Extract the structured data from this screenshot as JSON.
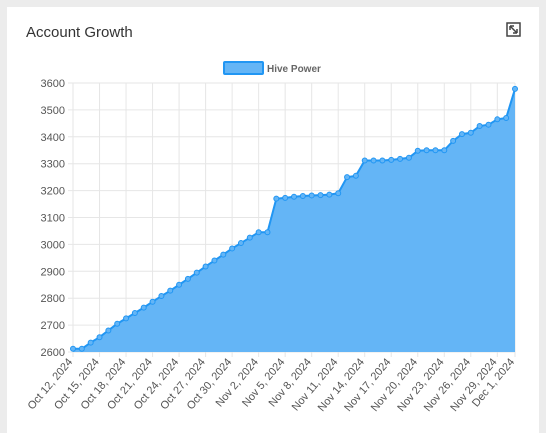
{
  "card": {
    "title": "Account Growth",
    "expand_icon": "expand-icon"
  },
  "colors": {
    "fill": "#64b5f6",
    "line": "#2196f3",
    "grid": "#e6e6e6"
  },
  "chart_data": {
    "type": "area",
    "title": "",
    "xlabel": "",
    "ylabel": "",
    "ylim": [
      2600,
      3600
    ],
    "yticks": [
      2600,
      2700,
      2800,
      2900,
      3000,
      3100,
      3200,
      3300,
      3400,
      3500,
      3600
    ],
    "grid": true,
    "legend_position": "top-center",
    "x": [
      "Oct 12, 2024",
      "Oct 13, 2024",
      "Oct 14, 2024",
      "Oct 15, 2024",
      "Oct 16, 2024",
      "Oct 17, 2024",
      "Oct 18, 2024",
      "Oct 19, 2024",
      "Oct 20, 2024",
      "Oct 21, 2024",
      "Oct 22, 2024",
      "Oct 23, 2024",
      "Oct 24, 2024",
      "Oct 25, 2024",
      "Oct 26, 2024",
      "Oct 27, 2024",
      "Oct 28, 2024",
      "Oct 29, 2024",
      "Oct 30, 2024",
      "Oct 31, 2024",
      "Nov 1, 2024",
      "Nov 2, 2024",
      "Nov 3, 2024",
      "Nov 4, 2024",
      "Nov 5, 2024",
      "Nov 6, 2024",
      "Nov 7, 2024",
      "Nov 8, 2024",
      "Nov 9, 2024",
      "Nov 10, 2024",
      "Nov 11, 2024",
      "Nov 12, 2024",
      "Nov 13, 2024",
      "Nov 14, 2024",
      "Nov 15, 2024",
      "Nov 16, 2024",
      "Nov 17, 2024",
      "Nov 18, 2024",
      "Nov 19, 2024",
      "Nov 20, 2024",
      "Nov 21, 2024",
      "Nov 22, 2024",
      "Nov 23, 2024",
      "Nov 24, 2024",
      "Nov 25, 2024",
      "Nov 26, 2024",
      "Nov 27, 2024",
      "Nov 28, 2024",
      "Nov 29, 2024",
      "Nov 30, 2024",
      "Dec 1, 2024"
    ],
    "x_tick_labels": [
      "Oct 12, 2024",
      "Oct 15, 2024",
      "Oct 18, 2024",
      "Oct 21, 2024",
      "Oct 24, 2024",
      "Oct 27, 2024",
      "Oct 30, 2024",
      "Nov 2, 2024",
      "Nov 5, 2024",
      "Nov 8, 2024",
      "Nov 11, 2024",
      "Nov 14, 2024",
      "Nov 17, 2024",
      "Nov 20, 2024",
      "Nov 23, 2024",
      "Nov 26, 2024",
      "Nov 29, 2024",
      "Dec 1, 2024"
    ],
    "series": [
      {
        "name": "Hive Power",
        "values": [
          2612,
          2612,
          2635,
          2655,
          2680,
          2705,
          2725,
          2745,
          2765,
          2787,
          2808,
          2828,
          2850,
          2872,
          2895,
          2918,
          2940,
          2962,
          2985,
          3005,
          3025,
          3045,
          3045,
          3170,
          3173,
          3177,
          3180,
          3182,
          3183,
          3185,
          3190,
          3250,
          3255,
          3312,
          3312,
          3312,
          3314,
          3318,
          3322,
          3348,
          3350,
          3350,
          3350,
          3385,
          3410,
          3415,
          3440,
          3445,
          3465,
          3470,
          3578
        ]
      }
    ]
  }
}
